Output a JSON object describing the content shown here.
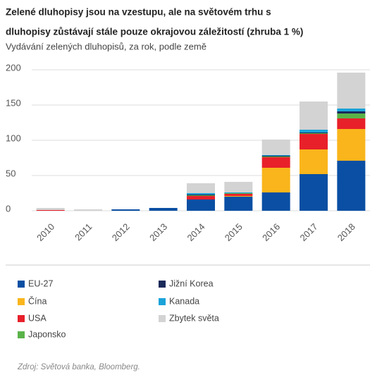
{
  "chart_data": {
    "type": "stacked_bar",
    "title": [
      "Zelené dluhopisy jsou na vzestupu, ale na světovém trhu s",
      "dluhopisy zůstávají stále pouze okrajovou záležitostí (zhruba 1 %)"
    ],
    "subtitle": "Vydávání zelených dluhopisů, za rok, podle země",
    "categories": [
      "2010",
      "2011",
      "2012",
      "2013",
      "2014",
      "2015",
      "2016",
      "2017",
      "2018"
    ],
    "series": [
      {
        "name": "EU-27",
        "color": "#0a4fa3",
        "values": [
          0,
          0,
          2,
          4,
          16,
          20,
          26,
          52,
          71
        ]
      },
      {
        "name": "Čína",
        "color": "#f9b51b",
        "values": [
          0,
          0,
          0,
          0,
          0,
          1,
          35,
          35,
          45
        ]
      },
      {
        "name": "USA",
        "color": "#e8202a",
        "values": [
          1,
          0,
          0,
          0,
          5,
          3,
          15,
          22,
          15
        ]
      },
      {
        "name": "Japonsko",
        "color": "#5ab349",
        "values": [
          0,
          0,
          0,
          0,
          1,
          1,
          1,
          1,
          7
        ]
      },
      {
        "name": "Jižní Korea",
        "color": "#1a2a5a",
        "values": [
          0,
          0,
          0,
          0,
          1,
          0,
          1,
          1,
          3
        ]
      },
      {
        "name": "Kanada",
        "color": "#1aa3d9",
        "values": [
          0,
          0,
          0,
          0,
          2,
          1,
          1,
          4,
          4
        ]
      },
      {
        "name": "Zbytek světa",
        "color": "#d3d3d3",
        "values": [
          3,
          2,
          0,
          0,
          14,
          15,
          22,
          40,
          51
        ]
      }
    ],
    "ylim": [
      0,
      200
    ],
    "yticks": [
      0,
      50,
      100,
      150,
      200
    ],
    "grid": true,
    "source": {
      "label": "Zdroj",
      "text": ": Světová banka, Bloomberg."
    }
  }
}
